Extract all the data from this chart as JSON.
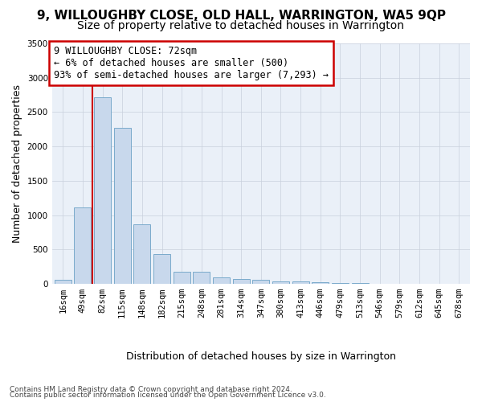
{
  "title": "9, WILLOUGHBY CLOSE, OLD HALL, WARRINGTON, WA5 9QP",
  "subtitle": "Size of property relative to detached houses in Warrington",
  "xlabel": "Distribution of detached houses by size in Warrington",
  "ylabel": "Number of detached properties",
  "categories": [
    "16sqm",
    "49sqm",
    "82sqm",
    "115sqm",
    "148sqm",
    "182sqm",
    "215sqm",
    "248sqm",
    "281sqm",
    "314sqm",
    "347sqm",
    "380sqm",
    "413sqm",
    "446sqm",
    "479sqm",
    "513sqm",
    "546sqm",
    "579sqm",
    "612sqm",
    "645sqm",
    "678sqm"
  ],
  "values": [
    55,
    1110,
    2720,
    2270,
    870,
    430,
    175,
    170,
    95,
    65,
    55,
    40,
    35,
    20,
    15,
    10,
    5,
    5,
    3,
    2,
    2
  ],
  "bar_color": "#c8d8ec",
  "bar_edge_color": "#7aaacb",
  "annotation_text": "9 WILLOUGHBY CLOSE: 72sqm\n← 6% of detached houses are smaller (500)\n93% of semi-detached houses are larger (7,293) →",
  "annotation_box_color": "#ffffff",
  "annotation_box_edge_color": "#cc0000",
  "red_line_x": 1.5,
  "ylim": [
    0,
    3500
  ],
  "yticks": [
    0,
    500,
    1000,
    1500,
    2000,
    2500,
    3000,
    3500
  ],
  "footer1": "Contains HM Land Registry data © Crown copyright and database right 2024.",
  "footer2": "Contains public sector information licensed under the Open Government Licence v3.0.",
  "plot_bg_color": "#eaf0f8",
  "title_fontsize": 11,
  "subtitle_fontsize": 10,
  "axis_label_fontsize": 9,
  "tick_fontsize": 7.5,
  "annotation_fontsize": 8.5
}
